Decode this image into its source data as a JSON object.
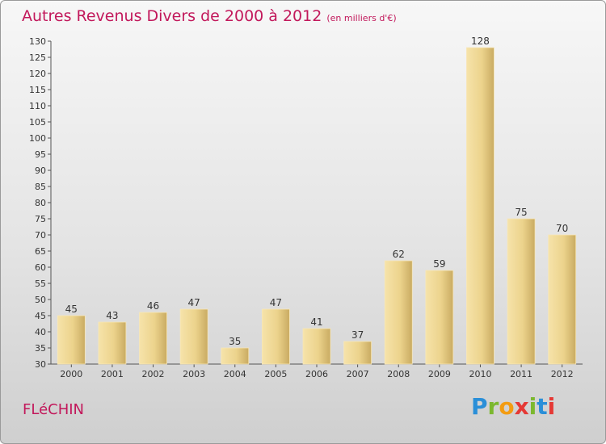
{
  "title": "Autres Revenus Divers de 2000 à 2012",
  "subtitle": "(en milliers d'€)",
  "town": "FLéCHIN",
  "logo": {
    "letters": [
      "P",
      "r",
      "o",
      "x",
      "i",
      "t",
      "i"
    ],
    "colors": [
      "#2a8fd8",
      "#7cb82f",
      "#f39c12",
      "#e53935",
      "#7cb82f",
      "#2a8fd8",
      "#e53935"
    ]
  },
  "colors": {
    "title": "#c2185b",
    "bar_light": "#f3dc9c",
    "bar_dark": "#c9ab62",
    "axis": "#555555"
  },
  "chart_data": {
    "type": "bar",
    "categories": [
      "2000",
      "2001",
      "2002",
      "2003",
      "2004",
      "2005",
      "2006",
      "2007",
      "2008",
      "2009",
      "2010",
      "2011",
      "2012"
    ],
    "values": [
      45,
      43,
      46,
      47,
      35,
      47,
      41,
      37,
      62,
      59,
      128,
      75,
      70
    ],
    "ylim": [
      30,
      130
    ],
    "yticks": [
      30,
      35,
      40,
      45,
      50,
      55,
      60,
      65,
      70,
      75,
      80,
      85,
      90,
      95,
      100,
      105,
      110,
      115,
      120,
      125,
      130
    ],
    "grid": false
  }
}
